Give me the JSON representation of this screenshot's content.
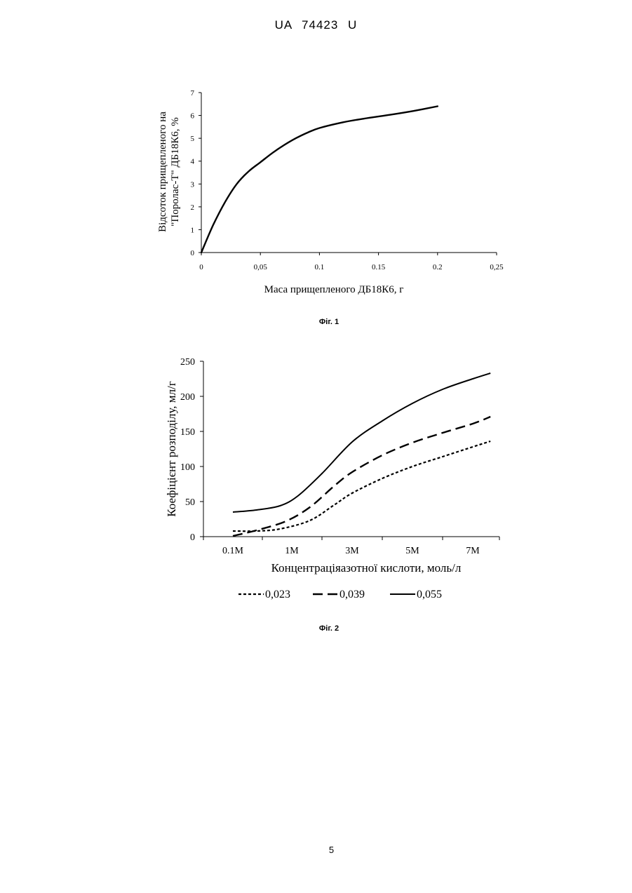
{
  "header": {
    "doc_id": "UA   74423   U"
  },
  "page_number": "5",
  "chart_data": [
    {
      "type": "line",
      "caption": "Фіг. 1",
      "title": "",
      "xlabel": "Маса прищепленого ДБ18К6, г",
      "ylabel_line1": "Відсоток прищепленого на",
      "ylabel_line2": "\"Поролас-Т\" ДБ18К6, %",
      "xlim": [
        0,
        0.25
      ],
      "ylim": [
        0,
        7
      ],
      "x_ticks": [
        {
          "value": 0,
          "label": "0"
        },
        {
          "value": 0.05,
          "label": "0,05"
        },
        {
          "value": 0.1,
          "label": "0.1"
        },
        {
          "value": 0.15,
          "label": "0.15"
        },
        {
          "value": 0.2,
          "label": "0.2"
        },
        {
          "value": 0.25,
          "label": "0,25"
        }
      ],
      "y_ticks": [
        {
          "value": 0,
          "label": "0"
        },
        {
          "value": 1,
          "label": "1"
        },
        {
          "value": 2,
          "label": "2"
        },
        {
          "value": 3,
          "label": "3"
        },
        {
          "value": 4,
          "label": "4"
        },
        {
          "value": 5,
          "label": "5"
        },
        {
          "value": 6,
          "label": "6"
        },
        {
          "value": 7,
          "label": "7"
        }
      ],
      "series": [
        {
          "x": [
            0,
            0.01,
            0.02,
            0.03,
            0.04,
            0.05,
            0.06,
            0.07,
            0.08,
            0.09,
            0.1,
            0.12,
            0.14,
            0.16,
            0.18,
            0.2
          ],
          "y": [
            0,
            1.2,
            2.2,
            3.0,
            3.55,
            3.95,
            4.35,
            4.7,
            5.0,
            5.25,
            5.45,
            5.7,
            5.88,
            6.03,
            6.2,
            6.4
          ]
        }
      ]
    },
    {
      "type": "line",
      "caption": "Фіг. 2",
      "title": "",
      "xlabel": "Концентраціяазотної кислоти, моль/л",
      "ylabel": "Коефіцієнт розподілу, мл/г",
      "categories": [
        "0.1М",
        "1М",
        "3М",
        "5М",
        "7М"
      ],
      "ylim": [
        0,
        250
      ],
      "y_ticks": [
        {
          "value": 0,
          "label": "0"
        },
        {
          "value": 50,
          "label": "50"
        },
        {
          "value": 100,
          "label": "100"
        },
        {
          "value": 150,
          "label": "150"
        },
        {
          "value": 200,
          "label": "200"
        },
        {
          "value": 250,
          "label": "250"
        }
      ],
      "series": [
        {
          "name": "0,023",
          "style": "dotted",
          "points": [
            [
              0,
              8
            ],
            [
              0.4,
              8
            ],
            [
              0.8,
              11
            ],
            [
              1.3,
              23
            ],
            [
              1.7,
              45
            ],
            [
              2.0,
              62
            ],
            [
              2.5,
              83
            ],
            [
              3.0,
              100
            ],
            [
              3.5,
              114
            ],
            [
              4.0,
              128
            ],
            [
              4.3,
              136
            ]
          ]
        },
        {
          "name": "0,039",
          "style": "dashed",
          "points": [
            [
              0,
              1
            ],
            [
              0.4,
              9
            ],
            [
              0.9,
              22
            ],
            [
              1.3,
              42
            ],
            [
              1.7,
              72
            ],
            [
              2.0,
              92
            ],
            [
              2.5,
              116
            ],
            [
              3.0,
              134
            ],
            [
              3.5,
              148
            ],
            [
              4.0,
              161
            ],
            [
              4.3,
              171
            ]
          ]
        },
        {
          "name": "0,055",
          "style": "solid",
          "points": [
            [
              0,
              35
            ],
            [
              0.4,
              38
            ],
            [
              0.8,
              44
            ],
            [
              1.1,
              58
            ],
            [
              1.5,
              90
            ],
            [
              2.0,
              135
            ],
            [
              2.5,
              165
            ],
            [
              3.0,
              190
            ],
            [
              3.5,
              210
            ],
            [
              4.0,
              225
            ],
            [
              4.3,
              233
            ]
          ]
        }
      ]
    }
  ]
}
